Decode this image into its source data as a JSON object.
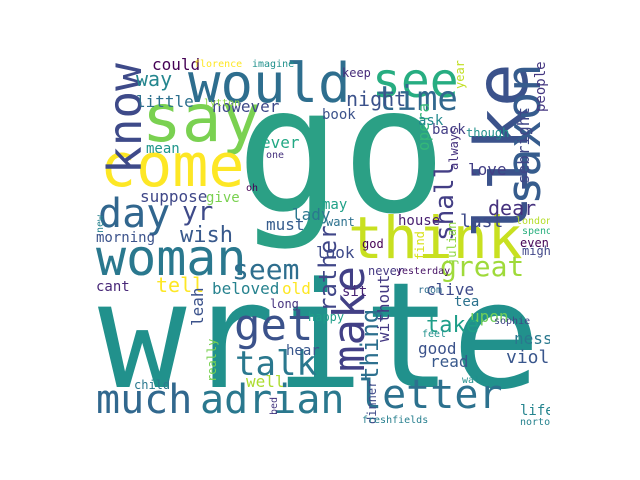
{
  "words": [
    {
      "text": "write",
      "color": "#21918c"
    },
    {
      "text": "go",
      "color": "#2ba085"
    },
    {
      "text": "think",
      "color": "#c8e020"
    },
    {
      "text": "say",
      "color": "#7ad151"
    },
    {
      "text": "would",
      "color": "#2e6e8e"
    },
    {
      "text": "see",
      "color": "#27ad81"
    },
    {
      "text": "like",
      "color": "#3b528b"
    },
    {
      "text": "come",
      "color": "#fde725"
    },
    {
      "text": "know",
      "color": "#3e4a89"
    },
    {
      "text": "woman",
      "color": "#2a788e"
    },
    {
      "text": "day",
      "color": "#31668e"
    },
    {
      "text": "saxon",
      "color": "#365c8d"
    },
    {
      "text": "time",
      "color": "#31688e"
    },
    {
      "text": "much",
      "color": "#31688e"
    },
    {
      "text": "adrian",
      "color": "#2a788e"
    },
    {
      "text": "letter",
      "color": "#2c718e"
    },
    {
      "text": "get",
      "color": "#3b528b"
    },
    {
      "text": "make",
      "color": "#424086"
    },
    {
      "text": "talk",
      "color": "#2a788e"
    },
    {
      "text": "great",
      "color": "#9fda3a"
    },
    {
      "text": "seem",
      "color": "#2e6e8e"
    },
    {
      "text": "night",
      "color": "#3b528b"
    },
    {
      "text": "shall",
      "color": "#433e85"
    },
    {
      "text": "yr",
      "color": "#3e4a89"
    },
    {
      "text": "wish",
      "color": "#38598c"
    },
    {
      "text": "opera",
      "color": "#35b779"
    },
    {
      "text": "upon",
      "color": "#6ece58"
    },
    {
      "text": "thing",
      "color": "#2d708e"
    },
    {
      "text": "dear",
      "color": "#46327e"
    },
    {
      "text": "take",
      "color": "#1f9e89"
    },
    {
      "text": "way",
      "color": "#24868e"
    },
    {
      "text": "tell",
      "color": "#fde725"
    },
    {
      "text": "violet",
      "color": "#39568c"
    },
    {
      "text": "rather",
      "color": "#404688"
    },
    {
      "text": "little",
      "color": "#2d708e"
    },
    {
      "text": "people",
      "color": "#453781"
    },
    {
      "text": "sebright",
      "color": "#404688"
    },
    {
      "text": "however",
      "color": "#3e4989"
    },
    {
      "text": "mean",
      "color": "#1f968b"
    },
    {
      "text": "could",
      "color": "#440154"
    },
    {
      "text": "keep",
      "color": "#472c7a"
    },
    {
      "text": "book",
      "color": "#3b528b"
    },
    {
      "text": "ask",
      "color": "#23898e"
    },
    {
      "text": "back",
      "color": "#433e85"
    },
    {
      "text": "love",
      "color": "#433e85"
    },
    {
      "text": "ever",
      "color": "#22a884"
    },
    {
      "text": "suppose",
      "color": "#3f4788"
    },
    {
      "text": "give",
      "color": "#7ad151"
    },
    {
      "text": "lady",
      "color": "#2a788e"
    },
    {
      "text": "may",
      "color": "#1fa187"
    },
    {
      "text": "must",
      "color": "#365c8d"
    },
    {
      "text": "morning",
      "color": "#3b528b"
    },
    {
      "text": "look",
      "color": "#3e4a89"
    },
    {
      "text": "beloved",
      "color": "#26828e"
    },
    {
      "text": "old",
      "color": "#fde725"
    },
    {
      "text": "cant",
      "color": "#482878"
    },
    {
      "text": "leah",
      "color": "#3b528b"
    },
    {
      "text": "sit",
      "color": "#482475"
    },
    {
      "text": "clive",
      "color": "#3e4a89"
    },
    {
      "text": "tea",
      "color": "#2c728e"
    },
    {
      "text": "good",
      "color": "#3b528b"
    },
    {
      "text": "read",
      "color": "#38598c"
    },
    {
      "text": "hear",
      "color": "#39568c"
    },
    {
      "text": "well",
      "color": "#addc30"
    },
    {
      "text": "nessa",
      "color": "#2a788e"
    },
    {
      "text": "without",
      "color": "#443983"
    },
    {
      "text": "last",
      "color": "#3e4a89"
    },
    {
      "text": "house",
      "color": "#481f70"
    },
    {
      "text": "want",
      "color": "#2c718e"
    },
    {
      "text": "even",
      "color": "#440154"
    },
    {
      "text": "might",
      "color": "#404688"
    },
    {
      "text": "god",
      "color": "#440154"
    },
    {
      "text": "never",
      "color": "#453882"
    },
    {
      "text": "long",
      "color": "#46337f"
    },
    {
      "text": "happy",
      "color": "#1f9e89"
    },
    {
      "text": "life",
      "color": "#25848e"
    },
    {
      "text": "dinner",
      "color": "#3e4a89"
    },
    {
      "text": "bed",
      "color": "#453781"
    },
    {
      "text": "walk",
      "color": "#218f8d"
    },
    {
      "text": "child",
      "color": "#2a788e"
    },
    {
      "text": "really",
      "color": "#7ad151"
    },
    {
      "text": "though",
      "color": "#21918c"
    },
    {
      "text": "always",
      "color": "#46337f"
    },
    {
      "text": "julian",
      "color": "#8fd744"
    },
    {
      "text": "yesterday",
      "color": "#471365"
    },
    {
      "text": "room",
      "color": "#2e6e8e"
    },
    {
      "text": "feel",
      "color": "#21918c"
    },
    {
      "text": "find",
      "color": "#d8e219"
    },
    {
      "text": "oh",
      "color": "#440154"
    },
    {
      "text": "one",
      "color": "#46327e"
    },
    {
      "text": "year",
      "color": "#c2df23"
    },
    {
      "text": "florence",
      "color": "#fde725"
    },
    {
      "text": "imagine",
      "color": "#21918c"
    },
    {
      "text": "lytton",
      "color": "#8fd744"
    },
    {
      "text": "london",
      "color": "#b5de2b"
    },
    {
      "text": "spend",
      "color": "#2ab07f"
    },
    {
      "text": "sophie",
      "color": "#404688"
    },
    {
      "text": "freshfields",
      "color": "#277f8e"
    },
    {
      "text": "norton",
      "color": "#26828e"
    },
    {
      "text": "new",
      "color": "#26828e"
    }
  ]
}
